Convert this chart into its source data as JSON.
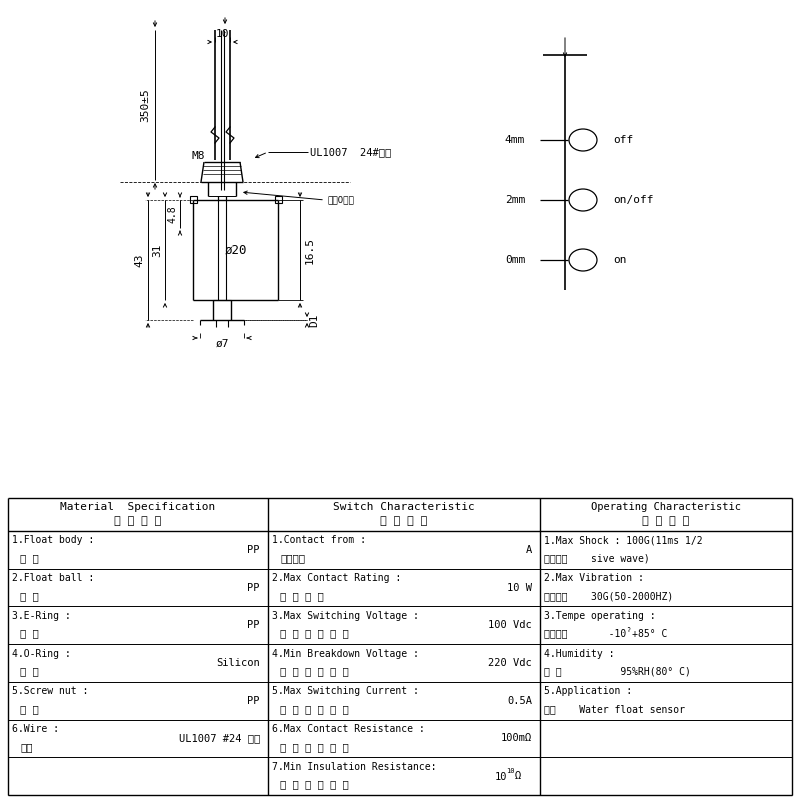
{
  "bg_color": "#ffffff",
  "line_color": "#000000",
  "fig_size": [
    8.0,
    8.0
  ],
  "dpi": 100,
  "material_spec_rows": [
    {
      "en": "1.Float body :",
      "cn": "本 体",
      "val": "PP"
    },
    {
      "en": "2.Float ball :",
      "cn": "浮 球",
      "val": "PP"
    },
    {
      "en": "3.E-Ring :",
      "cn": "档 片",
      "val": "PP"
    },
    {
      "en": "4.O-Ring :",
      "cn": "垫 片",
      "val": "Silicon"
    },
    {
      "en": "5.Screw nut :",
      "cn": "螺 母",
      "val": "PP"
    },
    {
      "en": "6.Wire :",
      "cn": "线材",
      "val": "UL1007 #24 黑色"
    },
    {
      "en": "",
      "cn": "",
      "val": ""
    }
  ],
  "switch_char_rows": [
    {
      "en": "1.Contact from :",
      "cn": "接触方式",
      "val": "A"
    },
    {
      "en": "2.Max Contact Rating :",
      "cn": "最 大 功 率",
      "val": "10 W"
    },
    {
      "en": "3.Max Switching Voltage :",
      "cn": "最 大 开 关 电 压",
      "val": "100 Vdc"
    },
    {
      "en": "4.Min Breakdown Voltage :",
      "cn": "最 小 崩 溃 电 压",
      "val": "220 Vdc"
    },
    {
      "en": "5.Max Switching Current :",
      "cn": "最 大 开 关 电 流",
      "val": "0.5A"
    },
    {
      "en": "6.Max Contact Resistance :",
      "cn": "最 大 接 触 电 阑",
      "val": "100mΩ"
    },
    {
      "en": "7.Min Insulation Resistance:",
      "cn": "最 小 绝 缘 电 阑",
      "val": "10Ω"
    }
  ],
  "operating_char_rows": [
    {
      "en": "1.Max Shock : 100G(11ms 1/2",
      "cn2": "最大震动    sive wave)"
    },
    {
      "en": "2.Max Vibration :",
      "cn2": "最大振幅    30G(50-2000HZ)"
    },
    {
      "en": "3.Tempe operating :",
      "cn2": "使用温度       -10ˀ+85° C"
    },
    {
      "en": "4.Humidity :",
      "cn2": "湿 度          95%RH(80° C)"
    },
    {
      "en": "5.Application :",
      "cn2": "应用    Water float sensor"
    },
    {
      "en": "",
      "cn2": ""
    },
    {
      "en": "",
      "cn2": ""
    }
  ]
}
